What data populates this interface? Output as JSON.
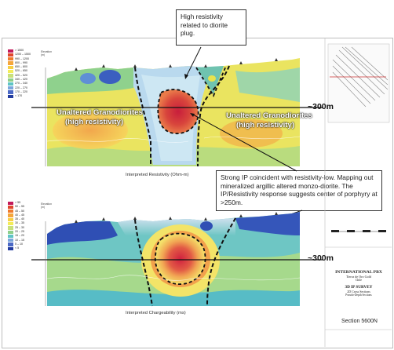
{
  "callouts": {
    "diorite": "High resistivity related to diorite plug.",
    "ip": "Strong IP coincident with resistivity-low. Mapping out mineralized argillic altered monzo-diorite. The IP/Resistivity response suggests center of porphyry at >250m."
  },
  "resistivity_section": {
    "caption": "Interpreted Resistivity (Ohm-m)",
    "elevation_label": "Elevation\n(m)",
    "label_left": "Unaltered Granodiorites\n(high resistivity)",
    "label_right": "Unaltered Granodiorites\n(high resistivity)",
    "depth_label": "~300m",
    "legend": [
      {
        "label": "> 1500",
        "color": "#c21a5a"
      },
      {
        "label": "1200 – 1500",
        "color": "#e0462c"
      },
      {
        "label": "990 – 1200",
        "color": "#ef7a2c"
      },
      {
        "label": "800 – 990",
        "color": "#f5a63a"
      },
      {
        "label": "650 – 800",
        "color": "#f7cf43"
      },
      {
        "label": "520 – 650",
        "color": "#f3ec58"
      },
      {
        "label": "420 – 520",
        "color": "#c8e07a"
      },
      {
        "label": "340 – 420",
        "color": "#8ecf8a"
      },
      {
        "label": "270 – 340",
        "color": "#5fc4c5"
      },
      {
        "label": "220 – 270",
        "color": "#7aa6dc"
      },
      {
        "label": "170 – 220",
        "color": "#4b69c6"
      },
      {
        "label": "< 170",
        "color": "#233c9f"
      }
    ]
  },
  "chargeability_section": {
    "caption": "Interpreted Chargeability (ms)",
    "elevation_label": "Elevation\n(m)",
    "depth_label": "~300m",
    "legend": [
      {
        "label": "> 55",
        "color": "#c21a5a"
      },
      {
        "label": "50 – 55",
        "color": "#e0462c"
      },
      {
        "label": "45 – 50",
        "color": "#ef7a2c"
      },
      {
        "label": "40 – 45",
        "color": "#f5a63a"
      },
      {
        "label": "35 – 40",
        "color": "#f7cf43"
      },
      {
        "label": "30 – 35",
        "color": "#f3ec58"
      },
      {
        "label": "25 – 30",
        "color": "#c8e07a"
      },
      {
        "label": "20 – 25",
        "color": "#8ecf8a"
      },
      {
        "label": "15 – 20",
        "color": "#5fc4c5"
      },
      {
        "label": "10 – 15",
        "color": "#7aa6dc"
      },
      {
        "label": "5 – 10",
        "color": "#4b69c6"
      },
      {
        "label": "< 5",
        "color": "#233c9f"
      }
    ]
  },
  "title_block": {
    "company": "INTERNATIONAL PBX",
    "project": "Tierra de Oro Gold",
    "country": "Chile",
    "survey": "3D IP SURVEY",
    "subtitle": "2D Cross Sections",
    "subtitle2": "Pseudo-Depth Sections",
    "section": "Section 5600N"
  }
}
